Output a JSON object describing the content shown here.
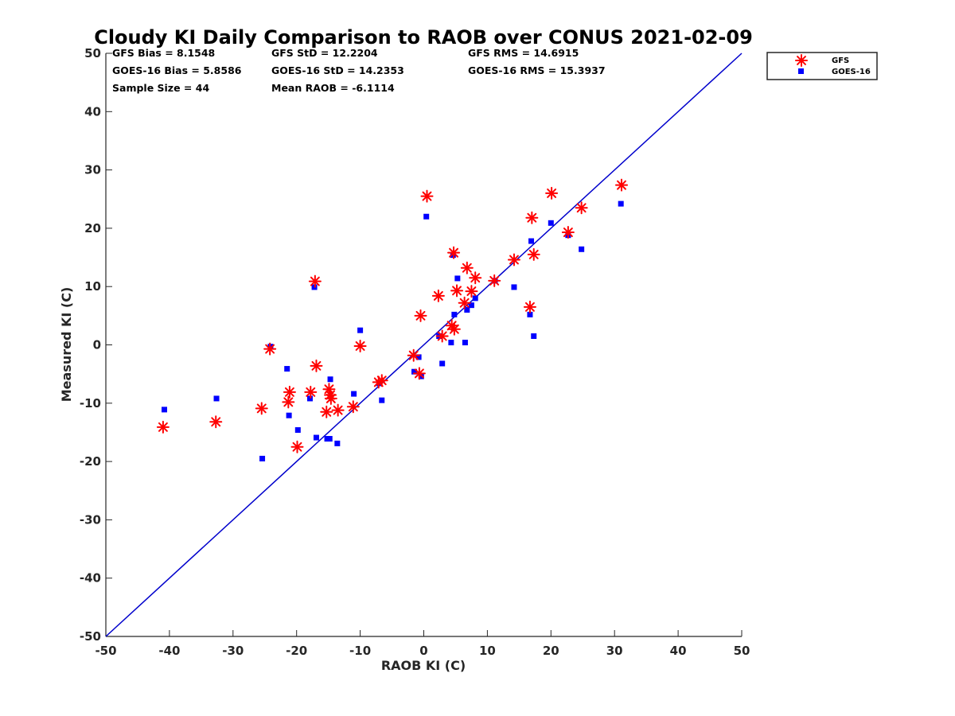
{
  "chart_data": {
    "type": "scatter",
    "title": "Cloudy KI Daily Comparison to RAOB over CONUS 2021-02-09",
    "xlabel": "RAOB KI (C)",
    "ylabel": "Measured KI (C)",
    "xlim": [
      -50,
      50
    ],
    "ylim": [
      -50,
      50
    ],
    "xticks": [
      "-50",
      "-40",
      "-30",
      "-20",
      "-10",
      "0",
      "10",
      "20",
      "30",
      "40",
      "50"
    ],
    "yticks": [
      "50",
      "40",
      "30",
      "20",
      "10",
      "0",
      "-10",
      "-20",
      "-30",
      "-40",
      "-50"
    ],
    "reference_line": {
      "name": "1:1 line",
      "color": "#0000cc",
      "from": [
        -50,
        -50
      ],
      "to": [
        50,
        50
      ]
    },
    "stats": {
      "gfs_bias": "GFS Bias = 8.1548",
      "goes_bias": "GOES-16 Bias = 5.8586",
      "sample_size": "Sample Size = 44",
      "gfs_std": "GFS StD = 12.2204",
      "goes_std": "GOES-16 StD = 14.2353",
      "mean_raob": "Mean RAOB = -6.1114",
      "gfs_rms": "GFS RMS = 14.6915",
      "goes_rms": "GOES-16 RMS = 15.3937"
    },
    "legend": {
      "position": "top-right",
      "entries": [
        {
          "label": "GFS",
          "color": "#ff0000",
          "marker": "asterisk"
        },
        {
          "label": "GOES-16",
          "color": "#0000ff",
          "marker": "square"
        }
      ]
    },
    "series": [
      {
        "name": "GFS",
        "color": "#ff0000",
        "marker": "asterisk",
        "points": [
          [
            -41,
            -14.1
          ],
          [
            -32.7,
            -13.2
          ],
          [
            -25.5,
            -10.9
          ],
          [
            -24.2,
            -0.7
          ],
          [
            -21.3,
            -9.8
          ],
          [
            -21.1,
            -8.1
          ],
          [
            -19.9,
            -17.5
          ],
          [
            -17.8,
            -8.1
          ],
          [
            -17.1,
            10.9
          ],
          [
            -16.9,
            -3.6
          ],
          [
            -15.3,
            -11.5
          ],
          [
            -14.9,
            -7.6
          ],
          [
            -14.7,
            -8.6
          ],
          [
            -14.6,
            -9.2
          ],
          [
            -13.5,
            -11.2
          ],
          [
            -11.1,
            -10.6
          ],
          [
            -10,
            -0.2
          ],
          [
            -7.1,
            -6.4
          ],
          [
            -6.6,
            -6.1
          ],
          [
            -1.6,
            -1.8
          ],
          [
            -0.7,
            -4.9
          ],
          [
            -0.5,
            5
          ],
          [
            0.5,
            25.5
          ],
          [
            2.3,
            8.4
          ],
          [
            2.9,
            1.5
          ],
          [
            4.4,
            3.3
          ],
          [
            4.7,
            15.8
          ],
          [
            4.8,
            2.7
          ],
          [
            5.2,
            9.3
          ],
          [
            6.4,
            7.2
          ],
          [
            6.8,
            13.2
          ],
          [
            7.5,
            9.2
          ],
          [
            8.1,
            11.5
          ],
          [
            11.1,
            11
          ],
          [
            14.2,
            14.6
          ],
          [
            16.7,
            6.5
          ],
          [
            17,
            21.8
          ],
          [
            17.3,
            15.5
          ],
          [
            20.1,
            26
          ],
          [
            22.7,
            19.3
          ],
          [
            24.8,
            23.5
          ],
          [
            31.1,
            27.4
          ]
        ]
      },
      {
        "name": "GOES-16",
        "color": "#0000ff",
        "marker": "square",
        "points": [
          [
            -40.8,
            -11.1
          ],
          [
            -32.6,
            -9.2
          ],
          [
            -25.4,
            -19.5
          ],
          [
            -24.1,
            -0.3
          ],
          [
            -21.5,
            -4.1
          ],
          [
            -21.2,
            -12.1
          ],
          [
            -19.8,
            -14.6
          ],
          [
            -17.9,
            -9.2
          ],
          [
            -17.2,
            9.9
          ],
          [
            -16.9,
            -15.9
          ],
          [
            -15.2,
            -16.1
          ],
          [
            -14.8,
            -16.1
          ],
          [
            -14.7,
            -5.9
          ],
          [
            -13.6,
            -16.9
          ],
          [
            -11,
            -8.4
          ],
          [
            -10,
            2.5
          ],
          [
            -7,
            -6.6
          ],
          [
            -6.6,
            -9.5
          ],
          [
            -1.5,
            -4.6
          ],
          [
            -0.8,
            -2.1
          ],
          [
            -0.4,
            -5.4
          ],
          [
            0.4,
            22
          ],
          [
            2.4,
            1.5
          ],
          [
            2.9,
            -3.2
          ],
          [
            4.3,
            0.4
          ],
          [
            4.6,
            15.4
          ],
          [
            4.8,
            5.2
          ],
          [
            5.3,
            11.4
          ],
          [
            6.5,
            0.4
          ],
          [
            6.8,
            6
          ],
          [
            7.5,
            6.8
          ],
          [
            8.1,
            8
          ],
          [
            11.2,
            11
          ],
          [
            14.2,
            9.9
          ],
          [
            16.7,
            5.2
          ],
          [
            16.9,
            17.8
          ],
          [
            17.3,
            1.5
          ],
          [
            20,
            20.9
          ],
          [
            22.7,
            18.8
          ],
          [
            24.8,
            16.4
          ],
          [
            31,
            24.2
          ]
        ]
      }
    ]
  }
}
